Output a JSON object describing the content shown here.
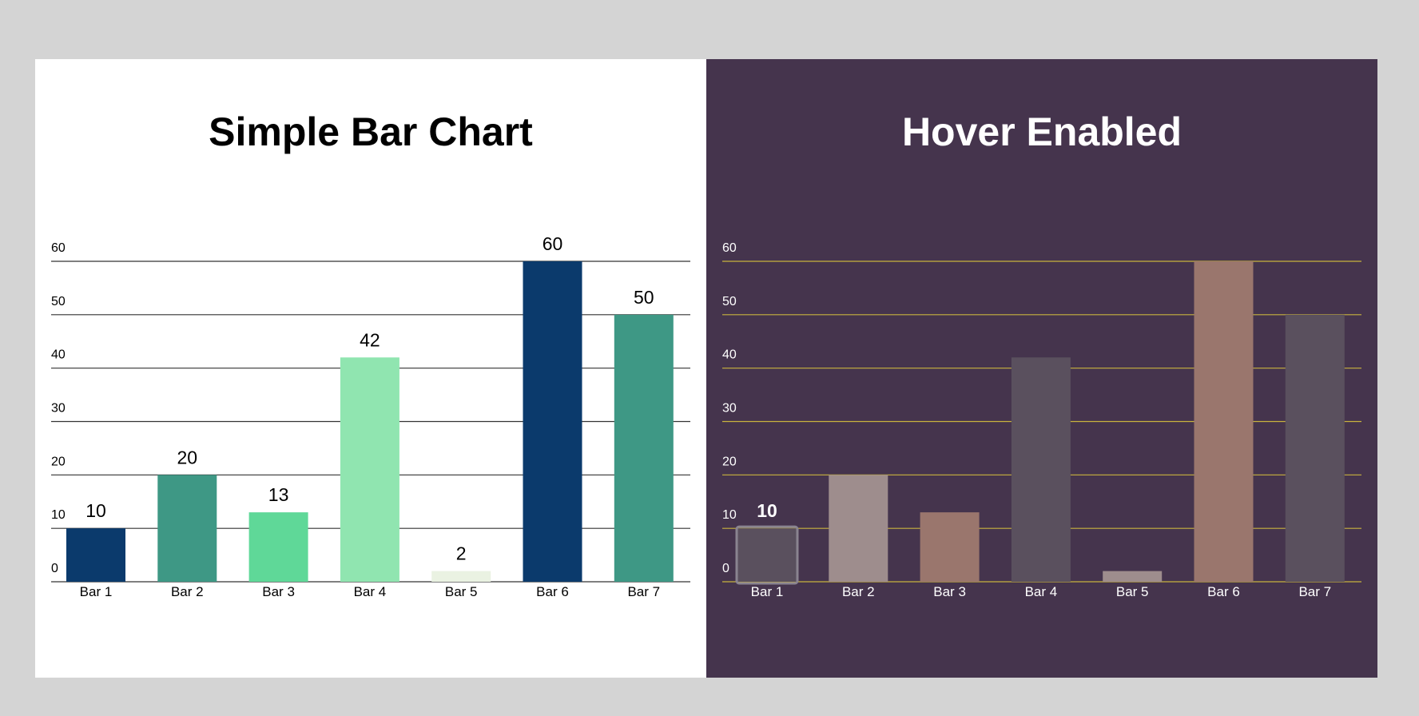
{
  "chart_data": [
    {
      "type": "bar",
      "title": "Simple Bar Chart",
      "categories": [
        "Bar 1",
        "Bar 2",
        "Bar 3",
        "Bar 4",
        "Bar 5",
        "Bar 6",
        "Bar 7"
      ],
      "values": [
        10,
        20,
        13,
        42,
        2,
        60,
        50
      ],
      "bar_colors": [
        "#0b3a6c",
        "#3e9885",
        "#5fd898",
        "#90e5b0",
        "#eaf2e2",
        "#0b3a6c",
        "#3e9885"
      ],
      "ylim": [
        0,
        60
      ],
      "yticks": [
        0,
        10,
        20,
        30,
        40,
        50,
        60
      ],
      "grid": true,
      "show_value_labels": true,
      "background": "#ffffff",
      "text_color": "#000000",
      "grid_color": "#333333"
    },
    {
      "type": "bar",
      "title": "Hover Enabled",
      "categories": [
        "Bar 1",
        "Bar 2",
        "Bar 3",
        "Bar 4",
        "Bar 5",
        "Bar 6",
        "Bar 7"
      ],
      "values": [
        10,
        20,
        13,
        42,
        2,
        60,
        50
      ],
      "bar_colors": [
        "#5a505e",
        "#9e8d8d",
        "#9a766d",
        "#5a505e",
        "#9e8d8d",
        "#9a766d",
        "#5a505e"
      ],
      "ylim": [
        0,
        60
      ],
      "yticks": [
        0,
        10,
        20,
        30,
        40,
        50,
        60
      ],
      "grid": true,
      "show_value_labels": false,
      "hovered_index": 0,
      "hover_label": "10",
      "background": "#45344d",
      "text_color": "#ffffff",
      "grid_color": "#c8b23e"
    }
  ]
}
